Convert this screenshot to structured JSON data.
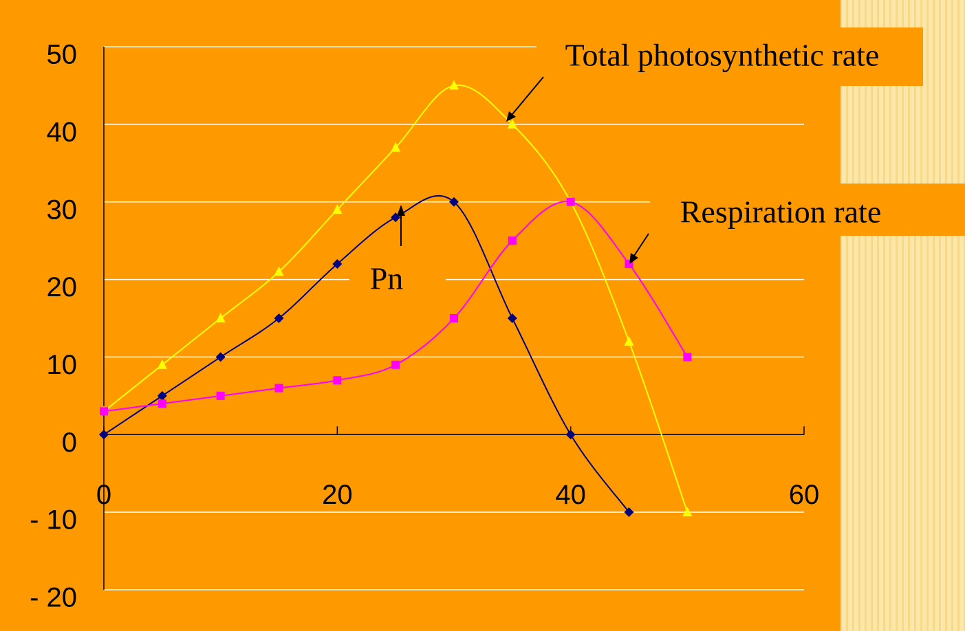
{
  "chart_data": {
    "type": "line",
    "xlim": [
      0,
      60
    ],
    "xticks": [
      0,
      20,
      40,
      60
    ],
    "ylim": [
      -20,
      50
    ],
    "yticks": [
      {
        "value": -20,
        "label": "- 20"
      },
      {
        "value": -10,
        "label": "- 10"
      },
      0,
      10,
      20,
      30,
      40,
      50
    ],
    "grid": true,
    "series": [
      {
        "name": "Total photosynthetic rate",
        "color": "#ffff00",
        "marker": "triangle",
        "x": [
          0,
          5,
          10,
          15,
          20,
          25,
          30,
          35,
          40,
          45,
          50
        ],
        "values": [
          3,
          9,
          15,
          21,
          29,
          37,
          45,
          40,
          30,
          12,
          -10
        ]
      },
      {
        "name": "Pn",
        "color": "#000080",
        "marker": "diamond",
        "x": [
          0,
          5,
          10,
          15,
          20,
          25,
          30,
          35,
          40,
          45
        ],
        "values": [
          0,
          5,
          10,
          15,
          22,
          28,
          30,
          15,
          0,
          -10
        ]
      },
      {
        "name": "Respiration rate",
        "color": "#ff00ff",
        "marker": "square",
        "x": [
          0,
          5,
          10,
          15,
          20,
          25,
          30,
          35,
          40,
          45,
          50
        ],
        "values": [
          3,
          4,
          5,
          6,
          7,
          9,
          15,
          25,
          30,
          22,
          10
        ]
      }
    ]
  }
}
